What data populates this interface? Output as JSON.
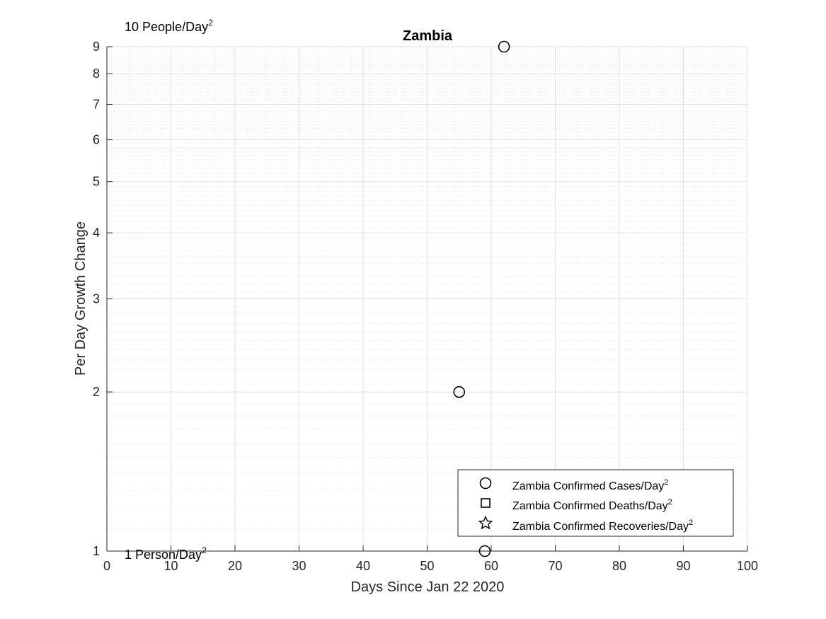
{
  "chart_data": {
    "type": "scatter",
    "title": "Zambia",
    "xlabel": "Days Since Jan 22 2020",
    "ylabel": "Per Day Growth Change",
    "xlim": [
      0,
      100
    ],
    "ylim": [
      1,
      9
    ],
    "yscale": "log",
    "xticks": [
      0,
      10,
      20,
      30,
      40,
      50,
      60,
      70,
      80,
      90,
      100
    ],
    "yticks": [
      1,
      2,
      3,
      4,
      5,
      6,
      7,
      8,
      9
    ],
    "grid": true,
    "minor_grid": true,
    "annotations": {
      "top_text": "10 People/Day",
      "top_sup": "2",
      "bottom_text": "1 Person/Day",
      "bottom_sup": "2"
    },
    "legend_position": "bottom-right",
    "series": [
      {
        "name": "Zambia Confirmed Cases/Day",
        "name_sup": "2",
        "marker": "circle",
        "points": [
          {
            "x": 55,
            "y": 2
          },
          {
            "x": 59,
            "y": 1
          },
          {
            "x": 62,
            "y": 9
          }
        ]
      },
      {
        "name": "Zambia Confirmed Deaths/Day",
        "name_sup": "2",
        "marker": "square",
        "points": []
      },
      {
        "name": "Zambia Confirmed Recoveries/Day",
        "name_sup": "2",
        "marker": "star",
        "points": []
      }
    ],
    "colors": {
      "marker": "#000000",
      "axis": "#262626",
      "grid": "#dfdfdf",
      "minor_grid": "#e6e6e6"
    }
  }
}
